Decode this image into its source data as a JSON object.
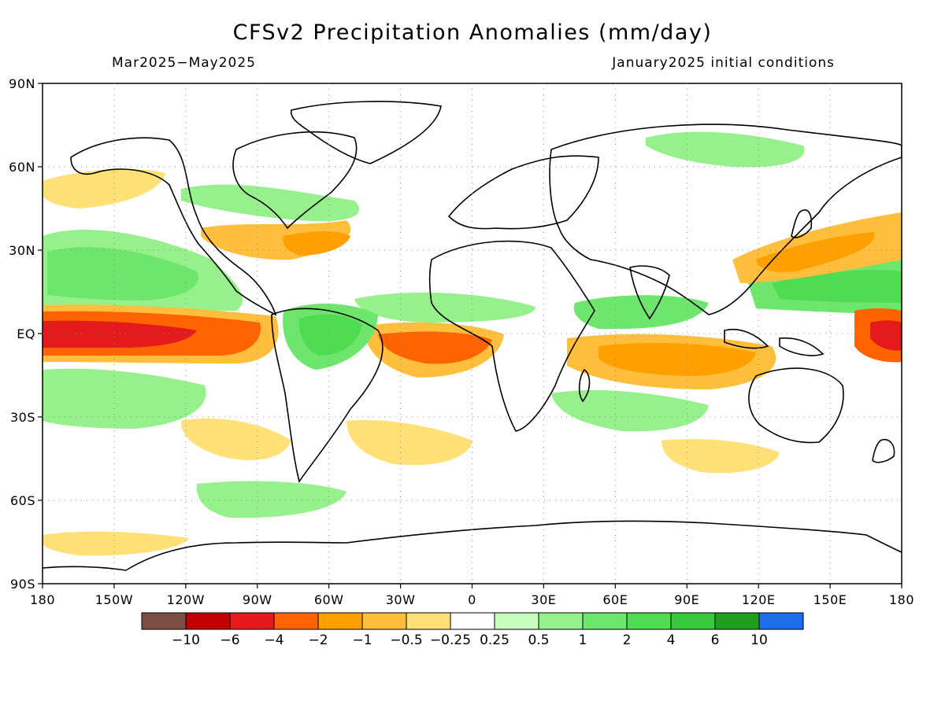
{
  "title": "CFSv2 Precipitation Anomalies (mm/day)",
  "subtitle_left": "Mar2025−May2025",
  "subtitle_right": "January2025 initial conditions",
  "lat_labels": [
    "90N",
    "60N",
    "30N",
    "EQ",
    "30S",
    "60S",
    "90S"
  ],
  "lon_labels": [
    "180",
    "150W",
    "120W",
    "90W",
    "60W",
    "30W",
    "0",
    "30E",
    "60E",
    "90E",
    "120E",
    "150E",
    "180"
  ],
  "colorbar": {
    "colors": [
      "#7b4f45",
      "#c00000",
      "#e41a1c",
      "#ff6400",
      "#ffa000",
      "#ffbe3c",
      "#ffe178",
      "#ffffff",
      "#c8ffbe",
      "#96f08c",
      "#6ee66e",
      "#50dc50",
      "#37c83c",
      "#1ea01e",
      "#1e6eeb"
    ],
    "labels": [
      "−10",
      "−6",
      "−4",
      "−2",
      "−1",
      "−0.5",
      "−0.25",
      "0.25",
      "0.5",
      "1",
      "2",
      "4",
      "6",
      "10"
    ]
  }
}
